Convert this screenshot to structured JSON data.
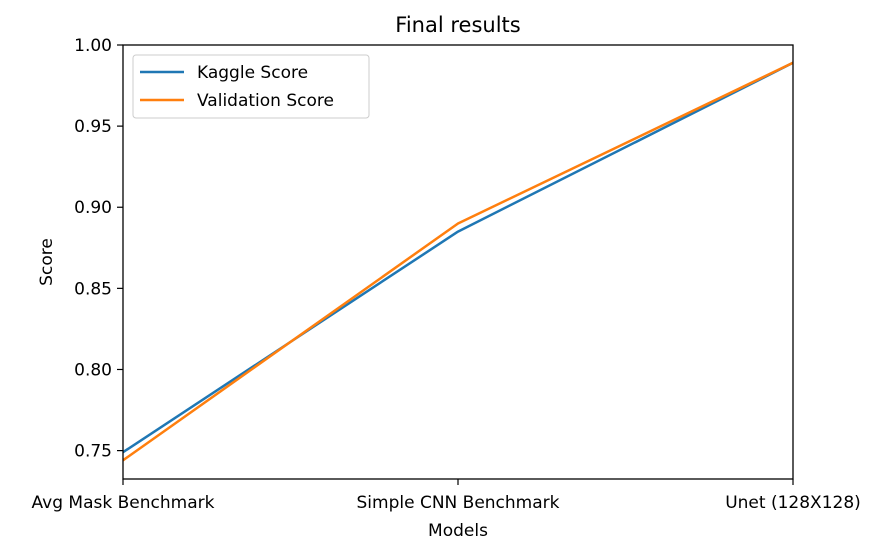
{
  "chart_data": {
    "type": "line",
    "title": "Final results",
    "xlabel": "Models",
    "ylabel": "Score",
    "categories": [
      "Avg Mask Benchmark",
      "Simple CNN Benchmark",
      "Unet (128X128)"
    ],
    "series": [
      {
        "name": "Kaggle Score",
        "color": "#1f77b4",
        "values": [
          0.749,
          0.885,
          0.989
        ]
      },
      {
        "name": "Validation Score",
        "color": "#ff7f0e",
        "values": [
          0.744,
          0.89,
          0.989
        ]
      }
    ],
    "ylim": [
      0.7325,
      1.0
    ],
    "yticks": [
      0.75,
      0.8,
      0.85,
      0.9,
      0.95,
      1.0
    ],
    "ytick_labels": [
      "0.75",
      "0.80",
      "0.85",
      "0.90",
      "0.95",
      "1.00"
    ],
    "legend_position": "top-left",
    "grid": false
  }
}
